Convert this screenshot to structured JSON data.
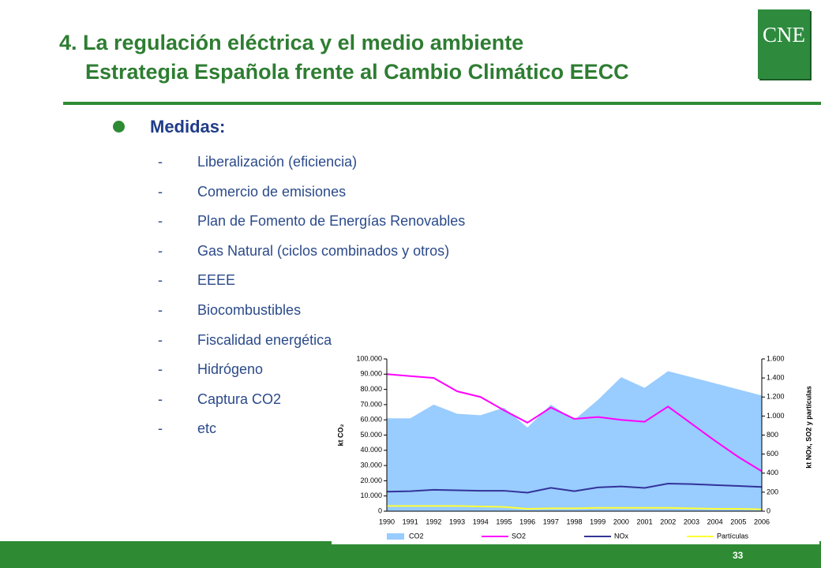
{
  "slide": {
    "title": [
      "4. La regulación eléctrica y el medio ambiente",
      "Estrategia Española frente al Cambio Climático EECC"
    ],
    "logo": "CNE",
    "heading": "Medidas:",
    "items": [
      "Liberalización (eficiencia)",
      "Comercio de emisiones",
      "Plan de Fomento de Energías Renovables",
      "Gas Natural (ciclos combinados y otros)",
      "EEEE",
      "Biocombustibles",
      "Fiscalidad energética",
      "Hidrógeno",
      "Captura CO2",
      "etc"
    ],
    "page": "33"
  },
  "chart_data": {
    "type": "area-line",
    "ylabel": "kt CO₂",
    "y2label": "kt NOx, SO2 y partículas",
    "categories": [
      "1990",
      "1991",
      "1992",
      "1993",
      "1994",
      "1995",
      "1996",
      "1997",
      "1998",
      "1999",
      "2000",
      "2001",
      "2002",
      "2003",
      "2004",
      "2005",
      "2006"
    ],
    "ylim": [
      0,
      100000
    ],
    "yticks": [
      0,
      {
        "value": 10000,
        "label": "10.000"
      },
      {
        "value": 20000,
        "label": "20.000"
      },
      {
        "value": 30000,
        "label": "30.000"
      },
      {
        "value": 40000,
        "label": "40.000"
      },
      {
        "value": 50000,
        "label": "50.000"
      },
      {
        "value": 60000,
        "label": "60.000"
      },
      {
        "value": 70000,
        "label": "70.000"
      },
      {
        "value": 80000,
        "label": "80.000"
      },
      {
        "value": 90000,
        "label": "90.000"
      },
      {
        "value": 100000,
        "label": "100.000"
      }
    ],
    "y2lim": [
      0,
      1600
    ],
    "y2ticks": [
      0,
      200,
      400,
      600,
      800,
      {
        "value": 1000,
        "label": "1.000"
      },
      {
        "value": 1200,
        "label": "1.200"
      },
      {
        "value": 1400,
        "label": "1.400"
      },
      {
        "value": 1600,
        "label": "1.600"
      }
    ],
    "series": [
      {
        "name": "CO2",
        "type": "area",
        "color": "#99ccff",
        "values": [
          61000,
          61000,
          70000,
          64000,
          63000,
          68000,
          55000,
          70000,
          60000,
          73000,
          88000,
          81000,
          92000,
          88000,
          84000,
          80000,
          76000
        ]
      },
      {
        "name": "SO2",
        "type": "line",
        "axis": "y2",
        "color": "#ff00ff",
        "values": [
          1440,
          1420,
          1400,
          1260,
          1200,
          1060,
          930,
          1090,
          970,
          990,
          960,
          940,
          1100,
          920,
          740,
          570,
          420
        ]
      },
      {
        "name": "NOx",
        "type": "line",
        "axis": "y2",
        "color": "#333399",
        "values": [
          205,
          210,
          225,
          220,
          215,
          215,
          195,
          245,
          210,
          250,
          260,
          245,
          290,
          285,
          275,
          265,
          255
        ]
      },
      {
        "name": "Partículas",
        "type": "line",
        "axis": "y2",
        "color": "#ffff33",
        "values": [
          55,
          55,
          55,
          55,
          50,
          45,
          25,
          30,
          30,
          35,
          35,
          35,
          35,
          30,
          25,
          25,
          20
        ]
      }
    ]
  }
}
